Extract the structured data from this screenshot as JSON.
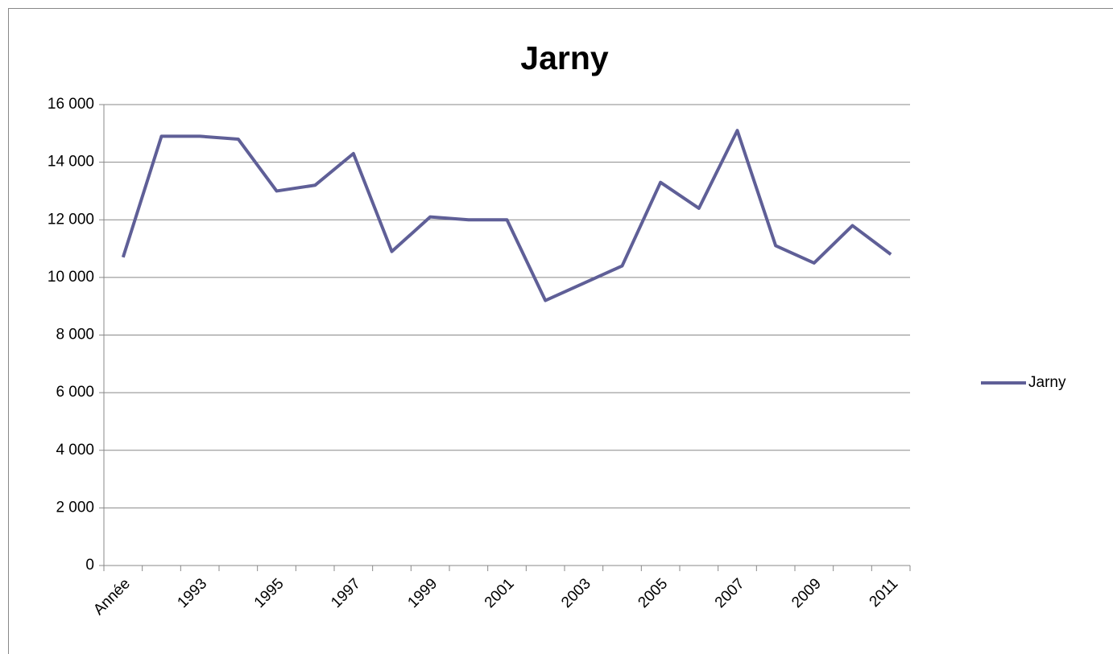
{
  "chart_data": {
    "type": "line",
    "title": "Jarny",
    "categories": [
      "Année",
      null,
      "1993",
      null,
      "1995",
      null,
      "1997",
      null,
      "1999",
      null,
      "2001",
      null,
      "2003",
      null,
      "2005",
      null,
      "2007",
      null,
      "2009",
      null,
      "2011"
    ],
    "series": [
      {
        "name": "Jarny",
        "color": "#5f5f97",
        "values": [
          10700,
          14900,
          14900,
          14800,
          13000,
          13200,
          14300,
          10900,
          12100,
          12000,
          12000,
          9200,
          9800,
          10400,
          13300,
          12400,
          15100,
          11100,
          10500,
          11800,
          10800
        ]
      }
    ],
    "ylim": [
      0,
      16000
    ],
    "yticks": [
      0,
      {
        "value": 2000,
        "label": "2 000"
      },
      {
        "value": 4000,
        "label": "4 000"
      },
      {
        "value": 6000,
        "label": "6 000"
      },
      {
        "value": 8000,
        "label": "8 000"
      },
      {
        "value": 10000,
        "label": "10 000"
      },
      {
        "value": 12000,
        "label": "12 000"
      },
      {
        "value": 14000,
        "label": "14 000"
      },
      {
        "value": 16000,
        "label": "16 000"
      }
    ],
    "grid": true,
    "legend": "right"
  }
}
